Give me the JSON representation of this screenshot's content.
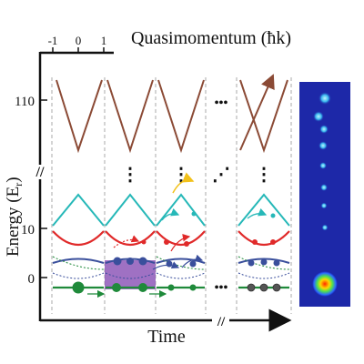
{
  "axes": {
    "top_label": "Quasimomentum (ħk)",
    "top_ticks": [
      "-1",
      "0",
      "1"
    ],
    "y_label_main": "Energy (E",
    "y_label_sub": "r",
    "y_label_close": ")",
    "y_ticks": [
      "110",
      "10",
      "0"
    ],
    "x_label": "Time",
    "axis_break": "//"
  },
  "ellipsis": "•••",
  "vertical_dots": "⋮",
  "diagonal_dots": "⋰",
  "colors": {
    "axis": "#111111",
    "band_high": "#8b4a35",
    "band_cyan": "#26b8b8",
    "band_red": "#e02a2a",
    "band_blue": "#3a4f9c",
    "band_green": "#1f8a3a",
    "highlight": "#8e58b8",
    "arrow_yellow": "#f2c11a",
    "divider": "#aaaaaa"
  }
}
